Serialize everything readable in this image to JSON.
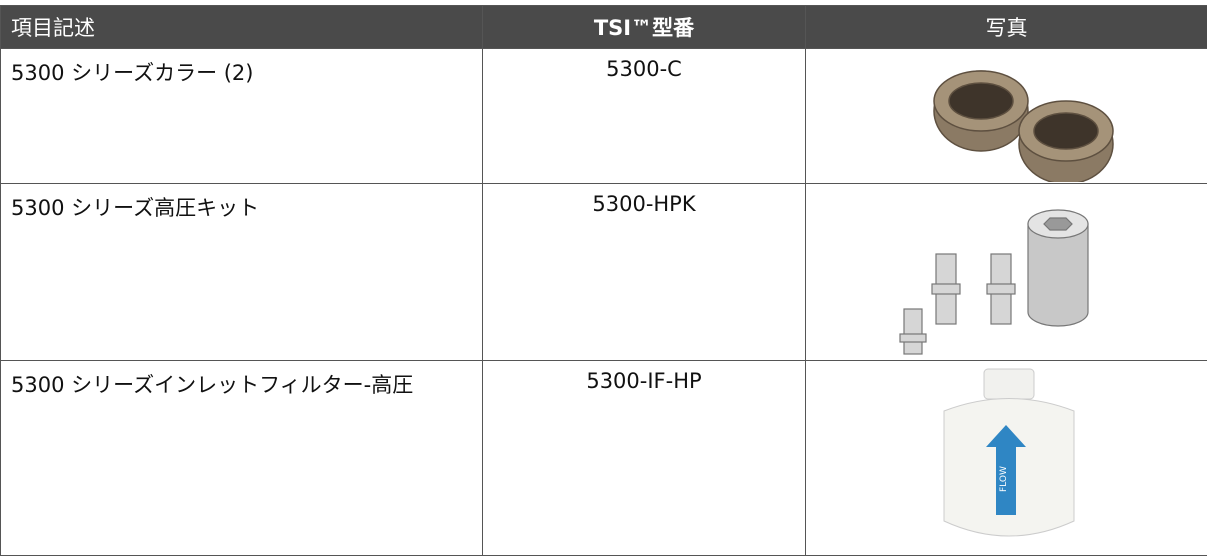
{
  "table": {
    "header": [
      "項目記述",
      "TSI™型番",
      "写真"
    ],
    "rows": [
      [
        "5300 シリーズカラー (2)",
        "5300-C"
      ],
      [
        "5300 シリーズ高圧キット",
        "5300-HPK"
      ],
      [
        "5300 シリーズインレットフィルター-高圧",
        "5300-IF-HP"
      ]
    ],
    "photo_text": "FLOW"
  }
}
